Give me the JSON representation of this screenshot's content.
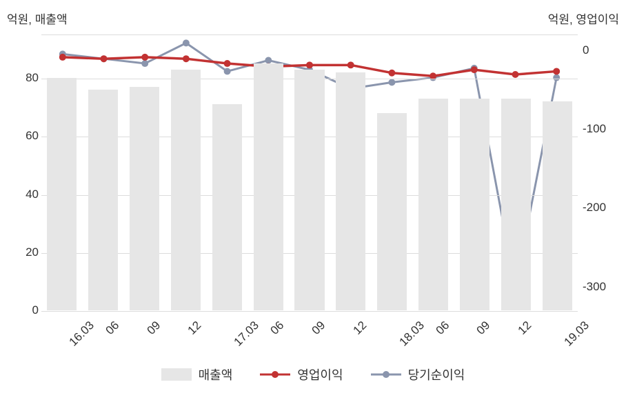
{
  "chart": {
    "type": "combo-bar-line-dual-axis",
    "background_color": "#ffffff",
    "grid_color": "#dcdcdc",
    "text_color": "#333333",
    "tick_fontsize": 17,
    "axis_title_fontsize": 17,
    "legend_fontsize": 18,
    "left_axis": {
      "title": "억원, 매출액",
      "ylim": [
        0,
        95
      ],
      "ticks": [
        0,
        20,
        40,
        60,
        80
      ]
    },
    "right_axis": {
      "title": "억원, 영업이익",
      "ylim": [
        -330,
        20
      ],
      "ticks": [
        0,
        -100,
        -200,
        -300
      ]
    },
    "categories": [
      "16.03",
      "06",
      "09",
      "12",
      "17.03",
      "06",
      "09",
      "12",
      "18.03",
      "06",
      "09",
      "12",
      "19.03"
    ],
    "x_label_rotation": -45,
    "bars": {
      "name": "매출액",
      "color": "#e6e6e6",
      "width_ratio": 0.72,
      "values": [
        80,
        76,
        77,
        83,
        71,
        85,
        83,
        82,
        68,
        73,
        73,
        73,
        72
      ]
    },
    "line1": {
      "name": "영업이익",
      "color": "#c23232",
      "line_width": 3.5,
      "marker_size": 5,
      "values": [
        -8,
        -10,
        -8,
        -10,
        -16,
        -20,
        -18,
        -18,
        -28,
        -32,
        -24,
        -30,
        -26
      ]
    },
    "line2": {
      "name": "당기순이익",
      "color": "#8a95ad",
      "line_width": 3,
      "marker_size": 5,
      "values": [
        -4,
        -10,
        -16,
        10,
        -26,
        -12,
        -24,
        -48,
        -40,
        -34,
        -22,
        -300,
        -34
      ]
    },
    "legend": {
      "items": [
        {
          "label": "매출액",
          "kind": "bar",
          "color": "#e6e6e6"
        },
        {
          "label": "영업이익",
          "kind": "line",
          "color": "#c23232"
        },
        {
          "label": "당기순이익",
          "kind": "line",
          "color": "#8a95ad"
        }
      ]
    }
  }
}
